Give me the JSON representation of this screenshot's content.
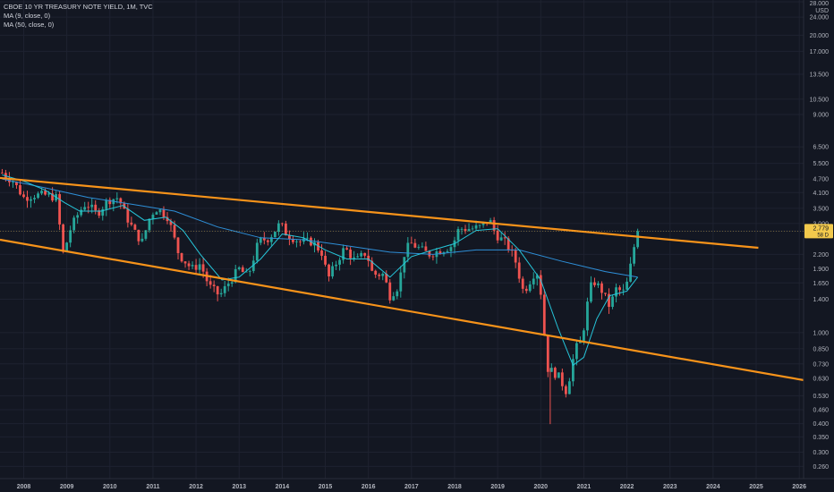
{
  "legend": {
    "symbol": "CBOE 10 YR TREASURY NOTE YIELD, 1M, TVC",
    "ma1": "MA (9, close, 0)",
    "ma2": "MA (50, close, 0)"
  },
  "price_badge": {
    "value": "2.779",
    "countdown": "58 D"
  },
  "colors": {
    "background": "#131722",
    "grid": "#1e2230",
    "up": "#26a69a",
    "down": "#ef5350",
    "ma9": "#26c6da",
    "ma50": "#2e8fd8",
    "channel": "#f7931a",
    "badge": "#f2c94c"
  },
  "chart_data": {
    "type": "candlestick",
    "scale": "log",
    "currency": "USD",
    "ylim": [
      0.23,
      28
    ],
    "y_ticks": [
      "28.000",
      "24.000",
      "20.000",
      "17.000",
      "13.500",
      "10.500",
      "9.000",
      "6.500",
      "5.500",
      "4.700",
      "4.100",
      "3.500",
      "3.000",
      "2.779",
      "2.200",
      "1.900",
      "1.650",
      "1.400",
      "1.000",
      "0.850",
      "0.730",
      "0.630",
      "0.530",
      "0.460",
      "0.400",
      "0.350",
      "0.300",
      "0.260"
    ],
    "x_ticks": [
      "2008",
      "2009",
      "2010",
      "2011",
      "2012",
      "2013",
      "2014",
      "2015",
      "2016",
      "2017",
      "2018",
      "2019",
      "2020",
      "2021",
      "2022",
      "2023",
      "2024",
      "2025",
      "2026"
    ],
    "x_range": [
      2007.45,
      2026.1
    ],
    "close_series": [
      [
        2007.5,
        5.0
      ],
      [
        2007.75,
        4.6
      ],
      [
        2008.0,
        3.9
      ],
      [
        2008.25,
        4.0
      ],
      [
        2008.5,
        4.0
      ],
      [
        2008.75,
        3.9
      ],
      [
        2008.92,
        2.2
      ],
      [
        2009.1,
        2.9
      ],
      [
        2009.3,
        3.4
      ],
      [
        2009.45,
        3.7
      ],
      [
        2009.7,
        3.3
      ],
      [
        2009.95,
        3.8
      ],
      [
        2010.2,
        3.9
      ],
      [
        2010.35,
        3.3
      ],
      [
        2010.6,
        2.7
      ],
      [
        2010.75,
        2.5
      ],
      [
        2010.95,
        3.3
      ],
      [
        2011.1,
        3.5
      ],
      [
        2011.35,
        3.2
      ],
      [
        2011.6,
        2.2
      ],
      [
        2011.9,
        1.9
      ],
      [
        2012.1,
        2.0
      ],
      [
        2012.3,
        1.6
      ],
      [
        2012.55,
        1.45
      ],
      [
        2012.8,
        1.7
      ],
      [
        2013.0,
        1.9
      ],
      [
        2013.2,
        1.75
      ],
      [
        2013.45,
        2.5
      ],
      [
        2013.7,
        2.6
      ],
      [
        2013.95,
        3.0
      ],
      [
        2014.1,
        2.7
      ],
      [
        2014.4,
        2.5
      ],
      [
        2014.7,
        2.5
      ],
      [
        2014.95,
        2.2
      ],
      [
        2015.05,
        1.7
      ],
      [
        2015.3,
        2.1
      ],
      [
        2015.45,
        2.35
      ],
      [
        2015.7,
        2.05
      ],
      [
        2015.95,
        2.25
      ],
      [
        2016.1,
        1.8
      ],
      [
        2016.35,
        1.8
      ],
      [
        2016.5,
        1.45
      ],
      [
        2016.7,
        1.6
      ],
      [
        2016.85,
        2.3
      ],
      [
        2017.0,
        2.45
      ],
      [
        2017.4,
        2.2
      ],
      [
        2017.7,
        2.3
      ],
      [
        2017.95,
        2.4
      ],
      [
        2018.1,
        2.85
      ],
      [
        2018.4,
        2.85
      ],
      [
        2018.6,
        2.9
      ],
      [
        2018.8,
        3.15
      ],
      [
        2018.95,
        2.7
      ],
      [
        2019.2,
        2.45
      ],
      [
        2019.4,
        2.1
      ],
      [
        2019.6,
        1.5
      ],
      [
        2019.9,
        1.9
      ],
      [
        2020.0,
        1.5
      ],
      [
        2020.15,
        0.7
      ],
      [
        2020.4,
        0.65
      ],
      [
        2020.6,
        0.55
      ],
      [
        2020.8,
        0.85
      ],
      [
        2020.95,
        0.92
      ],
      [
        2021.1,
        1.4
      ],
      [
        2021.2,
        1.7
      ],
      [
        2021.4,
        1.55
      ],
      [
        2021.6,
        1.3
      ],
      [
        2021.75,
        1.55
      ],
      [
        2021.95,
        1.5
      ],
      [
        2022.05,
        1.8
      ],
      [
        2022.15,
        2.3
      ],
      [
        2022.25,
        2.779
      ]
    ],
    "ma9_series": [
      [
        2007.5,
        4.9
      ],
      [
        2008.0,
        4.6
      ],
      [
        2008.5,
        4.2
      ],
      [
        2008.95,
        3.7
      ],
      [
        2009.3,
        3.4
      ],
      [
        2009.8,
        3.4
      ],
      [
        2010.3,
        3.6
      ],
      [
        2010.8,
        3.1
      ],
      [
        2011.3,
        3.2
      ],
      [
        2011.7,
        2.8
      ],
      [
        2012.1,
        2.2
      ],
      [
        2012.6,
        1.7
      ],
      [
        2013.0,
        1.75
      ],
      [
        2013.5,
        2.1
      ],
      [
        2014.0,
        2.7
      ],
      [
        2014.5,
        2.6
      ],
      [
        2015.0,
        2.3
      ],
      [
        2015.5,
        2.1
      ],
      [
        2016.0,
        2.1
      ],
      [
        2016.5,
        1.75
      ],
      [
        2017.0,
        2.15
      ],
      [
        2017.5,
        2.3
      ],
      [
        2018.0,
        2.45
      ],
      [
        2018.5,
        2.8
      ],
      [
        2019.0,
        2.85
      ],
      [
        2019.5,
        2.3
      ],
      [
        2020.0,
        1.7
      ],
      [
        2020.4,
        1.05
      ],
      [
        2020.75,
        0.72
      ],
      [
        2021.0,
        0.78
      ],
      [
        2021.3,
        1.15
      ],
      [
        2021.6,
        1.45
      ],
      [
        2022.0,
        1.52
      ],
      [
        2022.25,
        1.75
      ]
    ],
    "ma50_series": [
      [
        2007.5,
        4.7
      ],
      [
        2008.5,
        4.3
      ],
      [
        2009.5,
        3.9
      ],
      [
        2010.5,
        3.65
      ],
      [
        2011.5,
        3.4
      ],
      [
        2012.5,
        2.9
      ],
      [
        2013.5,
        2.6
      ],
      [
        2014.5,
        2.55
      ],
      [
        2015.5,
        2.4
      ],
      [
        2016.5,
        2.25
      ],
      [
        2017.5,
        2.2
      ],
      [
        2018.5,
        2.3
      ],
      [
        2019.5,
        2.3
      ],
      [
        2020.5,
        2.05
      ],
      [
        2021.5,
        1.85
      ],
      [
        2022.25,
        1.75
      ]
    ],
    "channel_lines": [
      {
        "name": "upper",
        "points": [
          [
            2007.45,
            4.75
          ],
          [
            2025.05,
            2.35
          ]
        ]
      },
      {
        "name": "lower",
        "points": [
          [
            2007.45,
            2.55
          ],
          [
            2026.1,
            0.62
          ]
        ]
      }
    ]
  }
}
